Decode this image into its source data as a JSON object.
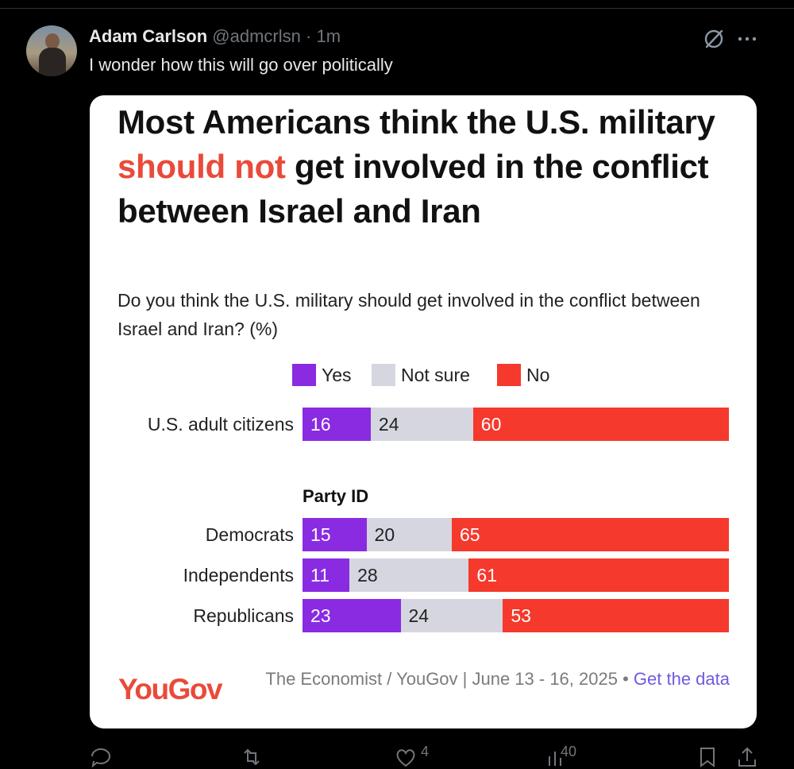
{
  "tweet": {
    "author_name": "Adam Carlson",
    "handle": "@admcrlsn",
    "separator": "·",
    "time": "1m",
    "text": "I wonder how this will go over politically"
  },
  "card": {
    "title_part1": "Most Americans think the U.S. military ",
    "title_highlight": "should not",
    "title_part2": " get involved in the conflict between Israel and Iran",
    "subtitle": "Do you think the U.S. military should get involved in the conflict between Israel and Iran? (%)",
    "group_label": "Party ID",
    "logo": "YouGov",
    "source": "The Economist / YouGov | June 13 - 16, 2025 •",
    "source_link": "Get the data"
  },
  "chart_data": {
    "type": "bar",
    "stacked": true,
    "orientation": "horizontal",
    "categories": [
      "U.S. adult citizens",
      "Democrats",
      "Independents",
      "Republicans"
    ],
    "series": [
      {
        "name": "Yes",
        "values": [
          16,
          15,
          11,
          23
        ],
        "color": "#8a2be2"
      },
      {
        "name": "Not sure",
        "values": [
          24,
          20,
          28,
          24
        ],
        "color": "#d5d6df"
      },
      {
        "name": "No",
        "values": [
          60,
          65,
          61,
          53
        ],
        "color": "#f5392c"
      }
    ],
    "legend_placement": "top",
    "xlim": [
      0,
      100
    ]
  },
  "actions": {
    "like_count": "4",
    "views_count": "40"
  }
}
